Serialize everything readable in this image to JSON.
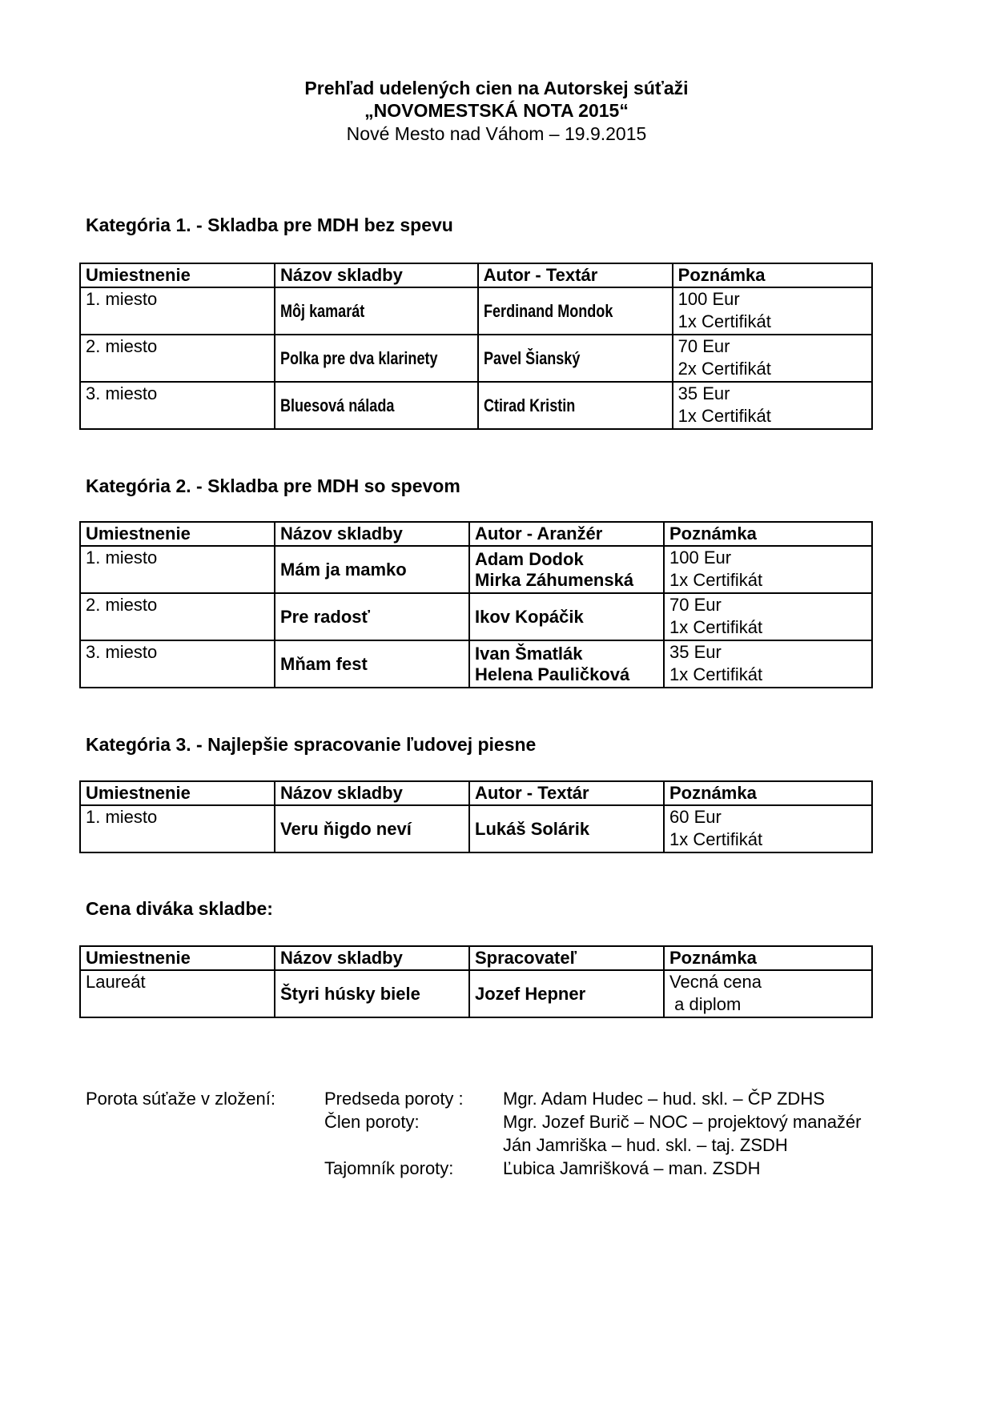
{
  "header": {
    "line1": "Prehľad udelených cien na Autorskej súťaži",
    "line2": "„NOVOMESTSKÁ NOTA 2015“",
    "line3": "Nové Mesto nad Váhom – 19.9.2015"
  },
  "categories": [
    {
      "title": "Kategória 1. - Skladba pre MDH bez spevu",
      "headers": [
        "Umiestnenie",
        "Názov skladby",
        "Autor - Textár",
        "Poznámka"
      ],
      "rows": [
        [
          "1. miesto",
          "Môj kamarát",
          "Ferdinand Mondok",
          "100 Eur",
          "1x Certifikát"
        ],
        [
          "2. miesto",
          "Polka pre dva klarinety",
          "Pavel Šianský",
          "70 Eur",
          "2x Certifikát"
        ],
        [
          "3. miesto",
          "Bluesová nálada",
          "Ctirad Kristin",
          "35 Eur",
          "1x Certifikát"
        ]
      ]
    },
    {
      "title": "Kategória 2. - Skladba pre MDH so spevom",
      "headers": [
        "Umiestnenie",
        "Názov skladby",
        "Autor - Aranžér",
        "Poznámka"
      ],
      "rows": [
        [
          "1. miesto",
          "Mám ja mamko",
          "Adam Dodok\nMirka Záhumenská",
          "100 Eur",
          "1x Certifikát"
        ],
        [
          "2. miesto",
          "Pre radosť",
          "Ikov Kopáčik",
          "70 Eur",
          "1x Certifikát"
        ],
        [
          "3. miesto",
          "Mňam fest",
          "Ivan Šmatlák\nHelena Pauličková",
          "35 Eur",
          "1x Certifikát"
        ]
      ]
    },
    {
      "title": "Kategória 3. - Najlepšie spracovanie ľudovej piesne",
      "headers": [
        "Umiestnenie",
        "Názov skladby",
        "Autor - Textár",
        "Poznámka"
      ],
      "rows": [
        [
          "1. miesto",
          "Veru ňigdo neví",
          "Lukáš Solárik",
          "60 Eur",
          "1x Certifikát"
        ]
      ]
    },
    {
      "title": "Cena diváka skladbe:",
      "headers": [
        "Umiestnenie",
        "Názov skladby",
        "Spracovateľ",
        "Poznámka"
      ],
      "rows": [
        [
          "Laureát",
          "Štyri húsky biele",
          "Jozef Hepner",
          "Vecná cena",
          " a diplom"
        ]
      ]
    }
  ],
  "jury": {
    "label": "Porota súťaže v zložení:",
    "roles": [
      "Predseda poroty :",
      "Člen poroty:",
      "",
      "Tajomník poroty:"
    ],
    "members": [
      "Mgr. Adam Hudec – hud. skl. – ČP ZDHS",
      "Mgr. Jozef Burič – NOC – projektový manažér",
      "Ján Jamriška – hud. skl. – taj. ZSDH",
      "Ľubica Jamrišková – man. ZSDH"
    ]
  }
}
